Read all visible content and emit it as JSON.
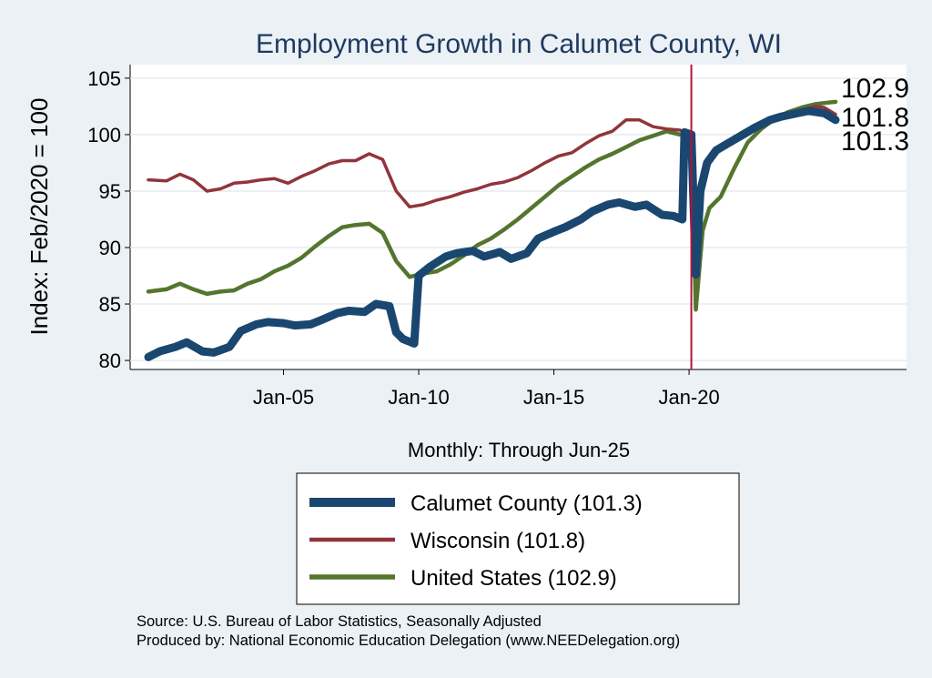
{
  "chart_data": {
    "type": "line",
    "title": "Employment Growth in Calumet  County, WI",
    "xlabel": "Monthly: Through Jun-25",
    "ylabel": "Index: Feb/2020 = 100",
    "ylim": [
      79.2,
      106.2
    ],
    "yticks": [
      80,
      85,
      90,
      95,
      100,
      105
    ],
    "x_range": [
      "2000-01",
      "2025-06"
    ],
    "x_ticks": [
      {
        "date": "2005-01",
        "label": "Jan-05"
      },
      {
        "date": "2010-01",
        "label": "Jan-10"
      },
      {
        "date": "2015-01",
        "label": "Jan-15"
      },
      {
        "date": "2020-01",
        "label": "Jan-20"
      }
    ],
    "reference_line": {
      "date": "2020-02",
      "color": "#b5123b"
    },
    "grid": true,
    "legend_position": "bottom",
    "series": [
      {
        "name": "Calumet  County (101.3)",
        "color": "#1a476f",
        "end_label": "101.3",
        "points": [
          [
            "2000-01",
            80.3
          ],
          [
            "2000-06",
            80.8
          ],
          [
            "2001-01",
            81.2
          ],
          [
            "2001-06",
            81.6
          ],
          [
            "2002-01",
            80.8
          ],
          [
            "2002-06",
            80.7
          ],
          [
            "2003-01",
            81.2
          ],
          [
            "2003-06",
            82.6
          ],
          [
            "2004-01",
            83.2
          ],
          [
            "2004-06",
            83.4
          ],
          [
            "2005-01",
            83.3
          ],
          [
            "2005-06",
            83.1
          ],
          [
            "2006-01",
            83.2
          ],
          [
            "2006-06",
            83.6
          ],
          [
            "2007-01",
            84.2
          ],
          [
            "2007-06",
            84.4
          ],
          [
            "2008-01",
            84.3
          ],
          [
            "2008-06",
            85.0
          ],
          [
            "2008-12",
            84.8
          ],
          [
            "2009-03",
            82.5
          ],
          [
            "2009-06",
            81.9
          ],
          [
            "2009-11",
            81.5
          ],
          [
            "2010-01",
            87.5
          ],
          [
            "2010-06",
            88.3
          ],
          [
            "2011-01",
            89.2
          ],
          [
            "2011-06",
            89.5
          ],
          [
            "2012-01",
            89.7
          ],
          [
            "2012-06",
            89.2
          ],
          [
            "2013-01",
            89.6
          ],
          [
            "2013-06",
            89.0
          ],
          [
            "2014-01",
            89.5
          ],
          [
            "2014-06",
            90.8
          ],
          [
            "2015-01",
            91.4
          ],
          [
            "2015-06",
            91.8
          ],
          [
            "2016-01",
            92.5
          ],
          [
            "2016-06",
            93.2
          ],
          [
            "2017-01",
            93.8
          ],
          [
            "2017-06",
            94.0
          ],
          [
            "2018-01",
            93.6
          ],
          [
            "2018-06",
            93.8
          ],
          [
            "2019-01",
            92.9
          ],
          [
            "2019-06",
            92.8
          ],
          [
            "2019-10",
            92.5
          ],
          [
            "2019-11",
            100.2
          ],
          [
            "2020-02",
            100.0
          ],
          [
            "2020-04",
            87.6
          ],
          [
            "2020-06",
            95.0
          ],
          [
            "2020-09",
            97.5
          ],
          [
            "2021-01",
            98.6
          ],
          [
            "2021-06",
            99.2
          ],
          [
            "2022-01",
            100.0
          ],
          [
            "2022-06",
            100.6
          ],
          [
            "2023-01",
            101.3
          ],
          [
            "2023-06",
            101.6
          ],
          [
            "2024-01",
            101.9
          ],
          [
            "2024-06",
            102.1
          ],
          [
            "2025-01",
            101.9
          ],
          [
            "2025-06",
            101.3
          ]
        ]
      },
      {
        "name": "Wisconsin (101.8)",
        "color": "#90353b",
        "end_label": "101.8",
        "points": [
          [
            "2000-01",
            96.0
          ],
          [
            "2000-09",
            95.9
          ],
          [
            "2001-03",
            96.5
          ],
          [
            "2001-09",
            96.0
          ],
          [
            "2002-03",
            95.0
          ],
          [
            "2002-09",
            95.2
          ],
          [
            "2003-03",
            95.7
          ],
          [
            "2003-09",
            95.8
          ],
          [
            "2004-03",
            96.0
          ],
          [
            "2004-09",
            96.1
          ],
          [
            "2005-03",
            95.7
          ],
          [
            "2005-09",
            96.3
          ],
          [
            "2006-03",
            96.8
          ],
          [
            "2006-09",
            97.4
          ],
          [
            "2007-03",
            97.7
          ],
          [
            "2007-09",
            97.7
          ],
          [
            "2008-03",
            98.3
          ],
          [
            "2008-09",
            97.8
          ],
          [
            "2009-03",
            95.0
          ],
          [
            "2009-09",
            93.6
          ],
          [
            "2010-03",
            93.8
          ],
          [
            "2010-09",
            94.2
          ],
          [
            "2011-03",
            94.5
          ],
          [
            "2011-09",
            94.9
          ],
          [
            "2012-03",
            95.2
          ],
          [
            "2012-09",
            95.6
          ],
          [
            "2013-03",
            95.8
          ],
          [
            "2013-09",
            96.2
          ],
          [
            "2014-03",
            96.8
          ],
          [
            "2014-09",
            97.5
          ],
          [
            "2015-03",
            98.1
          ],
          [
            "2015-09",
            98.4
          ],
          [
            "2016-03",
            99.2
          ],
          [
            "2016-09",
            99.9
          ],
          [
            "2017-03",
            100.3
          ],
          [
            "2017-09",
            101.3
          ],
          [
            "2018-03",
            101.3
          ],
          [
            "2018-09",
            100.7
          ],
          [
            "2019-03",
            100.5
          ],
          [
            "2019-09",
            100.4
          ],
          [
            "2020-02",
            100.0
          ],
          [
            "2020-04",
            88.3
          ],
          [
            "2020-07",
            95.5
          ],
          [
            "2020-10",
            98.0
          ],
          [
            "2021-03",
            98.9
          ],
          [
            "2021-09",
            99.8
          ],
          [
            "2022-03",
            100.5
          ],
          [
            "2022-09",
            101.0
          ],
          [
            "2023-03",
            101.5
          ],
          [
            "2023-09",
            101.9
          ],
          [
            "2024-03",
            102.2
          ],
          [
            "2024-09",
            102.5
          ],
          [
            "2025-01",
            102.4
          ],
          [
            "2025-06",
            101.8
          ]
        ]
      },
      {
        "name": "United States (102.9)",
        "color": "#55752f",
        "end_label": "102.9",
        "points": [
          [
            "2000-01",
            86.1
          ],
          [
            "2000-09",
            86.3
          ],
          [
            "2001-03",
            86.8
          ],
          [
            "2001-09",
            86.3
          ],
          [
            "2002-03",
            85.9
          ],
          [
            "2002-09",
            86.1
          ],
          [
            "2003-03",
            86.2
          ],
          [
            "2003-09",
            86.8
          ],
          [
            "2004-03",
            87.2
          ],
          [
            "2004-09",
            87.9
          ],
          [
            "2005-03",
            88.4
          ],
          [
            "2005-09",
            89.1
          ],
          [
            "2006-03",
            90.1
          ],
          [
            "2006-09",
            91.0
          ],
          [
            "2007-03",
            91.8
          ],
          [
            "2007-09",
            92.0
          ],
          [
            "2008-03",
            92.1
          ],
          [
            "2008-09",
            91.3
          ],
          [
            "2009-03",
            88.8
          ],
          [
            "2009-09",
            87.4
          ],
          [
            "2010-03",
            87.7
          ],
          [
            "2010-09",
            87.9
          ],
          [
            "2011-03",
            88.5
          ],
          [
            "2011-09",
            89.3
          ],
          [
            "2012-03",
            90.2
          ],
          [
            "2012-09",
            90.8
          ],
          [
            "2013-03",
            91.6
          ],
          [
            "2013-09",
            92.5
          ],
          [
            "2014-03",
            93.5
          ],
          [
            "2014-09",
            94.5
          ],
          [
            "2015-03",
            95.5
          ],
          [
            "2015-09",
            96.3
          ],
          [
            "2016-03",
            97.1
          ],
          [
            "2016-09",
            97.8
          ],
          [
            "2017-03",
            98.3
          ],
          [
            "2017-09",
            98.9
          ],
          [
            "2018-03",
            99.5
          ],
          [
            "2018-09",
            99.9
          ],
          [
            "2019-03",
            100.3
          ],
          [
            "2019-09",
            100.0
          ],
          [
            "2020-02",
            100.0
          ],
          [
            "2020-04",
            84.5
          ],
          [
            "2020-07",
            91.5
          ],
          [
            "2020-10",
            93.5
          ],
          [
            "2021-03",
            94.5
          ],
          [
            "2021-09",
            97.0
          ],
          [
            "2022-03",
            99.3
          ],
          [
            "2022-09",
            100.5
          ],
          [
            "2023-03",
            101.4
          ],
          [
            "2023-09",
            102.0
          ],
          [
            "2024-03",
            102.4
          ],
          [
            "2024-09",
            102.7
          ],
          [
            "2025-01",
            102.8
          ],
          [
            "2025-06",
            102.9
          ]
        ]
      }
    ]
  },
  "footer": {
    "source": "Source: U.S. Bureau of Labor Statistics, Seasonally Adjusted",
    "produced_by": "Produced by: National Economic Education Delegation (www.NEEDelegation.org)"
  }
}
